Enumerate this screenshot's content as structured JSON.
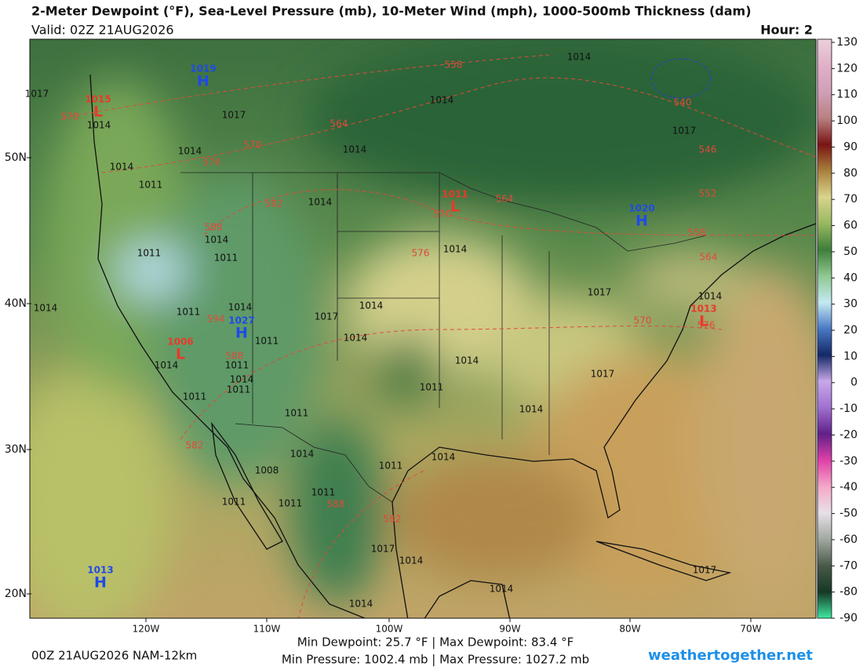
{
  "header": {
    "title": "2-Meter Dewpoint (°F), Sea-Level Pressure (mb), 10-Meter Wind (mph), 1000-500mb Thickness (dam)",
    "valid": "Valid: 02Z 21AUG2026",
    "hour": "Hour: 2"
  },
  "colorbar": {
    "ticks": [
      130,
      120,
      110,
      100,
      90,
      80,
      70,
      60,
      50,
      40,
      30,
      20,
      10,
      0,
      -10,
      -20,
      -30,
      -40,
      -50,
      -60,
      -70,
      -80,
      -90
    ],
    "colors": [
      "#ecd0dc",
      "#e0b0c8",
      "#d0a0b8",
      "#b88080",
      "#7a1414",
      "#a8803c",
      "#d8d48c",
      "#98b860",
      "#3e7e3a",
      "#90c890",
      "#c4eaf2",
      "#4a78c4",
      "#142866",
      "#c8a8e8",
      "#a070d0",
      "#602088",
      "#e040a8",
      "#f4a8c8",
      "#e8e0e8",
      "#a0a8a0",
      "#4a5a4a",
      "#143824",
      "#40e8a0"
    ]
  },
  "map": {
    "lat_labels": [
      "50N",
      "40N",
      "30N",
      "20N"
    ],
    "lon_labels": [
      "120W",
      "110W",
      "100W",
      "90W",
      "80W",
      "70W"
    ],
    "centers": [
      {
        "letter": "H",
        "pressure": 1019
      },
      {
        "letter": "L",
        "pressure": 1015
      },
      {
        "letter": "L",
        "pressure": 1011
      },
      {
        "letter": "H",
        "pressure": 1020
      },
      {
        "letter": "H",
        "pressure": 1027
      },
      {
        "letter": "L",
        "pressure": 1006
      },
      {
        "letter": "L",
        "pressure": 1013
      },
      {
        "letter": "H",
        "pressure": 1013
      }
    ],
    "isobar_labels": [
      1014,
      1017,
      1014,
      1017,
      1014,
      1014,
      1014,
      1014,
      1011,
      1014,
      1014,
      1011,
      1011,
      1014,
      1011,
      1014,
      1017,
      1014,
      1014,
      1011,
      1014,
      1011,
      1014,
      1011,
      1011,
      1011,
      1014,
      1011,
      1017,
      1014,
      1017,
      1014,
      1014,
      1017,
      1014,
      1011,
      1014,
      1008,
      1011,
      1011,
      1011,
      1017,
      1014,
      1014,
      1017,
      1014
    ],
    "thickness_labels": [
      558,
      564,
      570,
      576,
      582,
      588,
      576,
      570,
      564,
      594,
      588,
      582,
      588,
      582,
      570,
      576,
      558,
      564,
      552,
      546,
      540,
      570
    ]
  },
  "footer": {
    "run": "00Z 21AUG2026 NAM-12km",
    "dewpoint": "Min Dewpoint: 25.7 °F | Max Dewpoint: 83.4 °F",
    "pressure": "Min Pressure: 1002.4 mb | Max Pressure: 1027.2 mb",
    "site": "weathertogether.net"
  }
}
